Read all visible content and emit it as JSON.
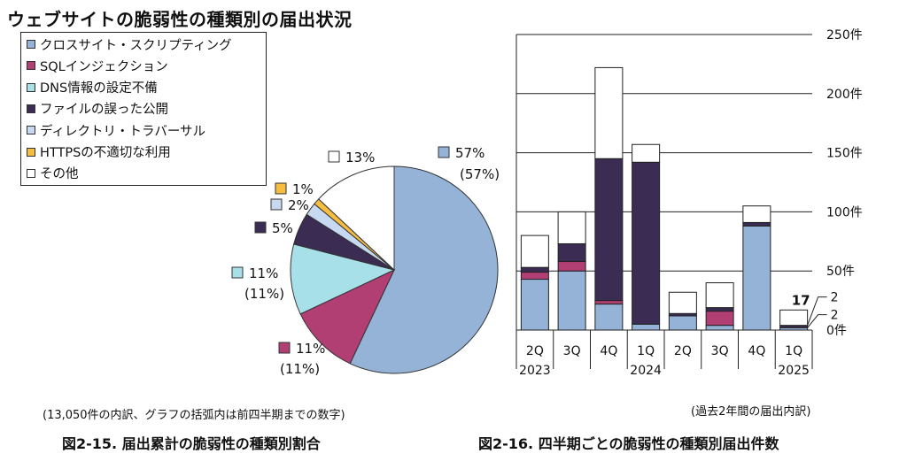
{
  "page": {
    "title": "ウェブサイトの脆弱性の種類別の届出状況"
  },
  "legend": [
    {
      "label": "クロスサイト・スクリプティング",
      "color": "#95b3d7"
    },
    {
      "label": "SQLインジェクション",
      "color": "#b13f74"
    },
    {
      "label": "DNS情報の設定不備",
      "color": "#a8e0ea"
    },
    {
      "label": "ファイルの誤った公開",
      "color": "#3a2c52"
    },
    {
      "label": "ディレクトリ・トラバーサル",
      "color": "#c6d9f1"
    },
    {
      "label": "HTTPSの不適切な利用",
      "color": "#f6be41"
    },
    {
      "label": "その他",
      "color": "#ffffff"
    }
  ],
  "pie": {
    "note": "(13,050件の内訳、グラフの括弧内は前四半期までの数字)",
    "caption": "図2-15. 届出累計の脆弱性の種類別割合"
  },
  "bars": {
    "note": "(過去2年間の届出内訳)",
    "caption": "図2-16. 四半期ごとの脆弱性の種類別届出件数",
    "total_label": "17",
    "callouts": [
      "2",
      "2"
    ]
  },
  "chart_data": [
    {
      "type": "pie",
      "title": "",
      "slices": [
        {
          "name": "クロスサイト・スクリプティング",
          "value": 57,
          "label": "57%",
          "prev_label": "(57%)",
          "color": "#95b3d7"
        },
        {
          "name": "SQLインジェクション",
          "value": 11,
          "label": "11%",
          "prev_label": "(11%)",
          "color": "#b13f74"
        },
        {
          "name": "DNS情報の設定不備",
          "value": 11,
          "label": "11%",
          "prev_label": "(11%)",
          "color": "#a8e0ea"
        },
        {
          "name": "ファイルの誤った公開",
          "value": 5,
          "label": "5%",
          "prev_label": "",
          "color": "#3a2c52"
        },
        {
          "name": "ディレクトリ・トラバーサル",
          "value": 2,
          "label": "2%",
          "prev_label": "",
          "color": "#c6d9f1"
        },
        {
          "name": "HTTPSの不適切な利用",
          "value": 1,
          "label": "1%",
          "prev_label": "",
          "color": "#f6be41"
        },
        {
          "name": "その他",
          "value": 13,
          "label": "13%",
          "prev_label": "",
          "color": "#ffffff"
        }
      ]
    },
    {
      "type": "bar",
      "stacked": true,
      "categories": [
        "2Q",
        "3Q",
        "4Q",
        "1Q",
        "2Q",
        "3Q",
        "4Q",
        "1Q"
      ],
      "year_labels": [
        "2023",
        "",
        "",
        "2024",
        "",
        "",
        "",
        "2025"
      ],
      "ylim": [
        0,
        250
      ],
      "yticks": [
        0,
        50,
        100,
        150,
        200,
        250
      ],
      "ytick_labels": [
        "0件",
        "50件",
        "100件",
        "150件",
        "200件",
        "250件"
      ],
      "grid": true,
      "series": [
        {
          "name": "クロスサイト・スクリプティング",
          "color": "#95b3d7",
          "values": [
            43,
            50,
            22,
            5,
            12,
            4,
            88,
            2
          ]
        },
        {
          "name": "SQLインジェクション",
          "color": "#b13f74",
          "values": [
            6,
            8,
            3,
            0,
            0,
            12,
            0,
            0
          ]
        },
        {
          "name": "DNS情報の設定不備",
          "color": "#a8e0ea",
          "values": [
            0,
            0,
            0,
            0,
            0,
            0,
            0,
            0
          ]
        },
        {
          "name": "ファイルの誤った公開",
          "color": "#3a2c52",
          "values": [
            4,
            15,
            120,
            137,
            2,
            3,
            3,
            2
          ]
        },
        {
          "name": "ディレクトリ・トラバーサル",
          "color": "#c6d9f1",
          "values": [
            0,
            0,
            0,
            0,
            0,
            0,
            0,
            0
          ]
        },
        {
          "name": "HTTPSの不適切な利用",
          "color": "#f6be41",
          "values": [
            0,
            0,
            0,
            0,
            0,
            0,
            0,
            0
          ]
        },
        {
          "name": "その他",
          "color": "#ffffff",
          "values": [
            27,
            27,
            77,
            15,
            18,
            21,
            14,
            13
          ]
        }
      ]
    }
  ]
}
